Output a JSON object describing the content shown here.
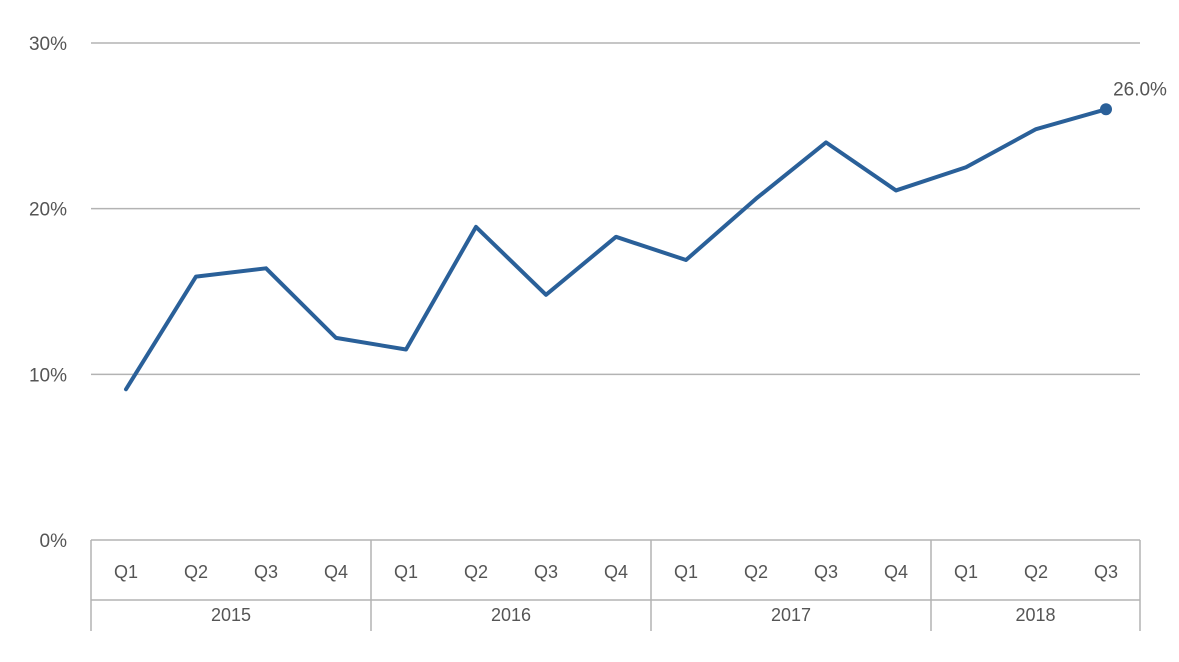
{
  "chart_data": {
    "type": "line",
    "title": "",
    "xlabel": "",
    "ylabel": "",
    "y_axis": {
      "min": 0,
      "max": 30,
      "ticks": [
        0,
        10,
        20,
        30
      ],
      "tick_labels": [
        "0%",
        "10%",
        "20%",
        "30%"
      ],
      "grid": true
    },
    "x_axis": {
      "groups": [
        {
          "year": "2015",
          "quarters": [
            "Q1",
            "Q2",
            "Q3",
            "Q4"
          ]
        },
        {
          "year": "2016",
          "quarters": [
            "Q1",
            "Q2",
            "Q3",
            "Q4"
          ]
        },
        {
          "year": "2017",
          "quarters": [
            "Q1",
            "Q2",
            "Q3",
            "Q4"
          ]
        },
        {
          "year": "2018",
          "quarters": [
            "Q1",
            "Q2",
            "Q3"
          ]
        }
      ]
    },
    "series": [
      {
        "values": [
          9.1,
          15.9,
          16.4,
          12.2,
          11.5,
          18.9,
          14.8,
          18.3,
          16.9,
          20.6,
          24.0,
          21.1,
          22.5,
          24.8,
          26.0
        ],
        "color": "#2a6099",
        "end_label": "26.0%"
      }
    ],
    "legend": "none"
  }
}
